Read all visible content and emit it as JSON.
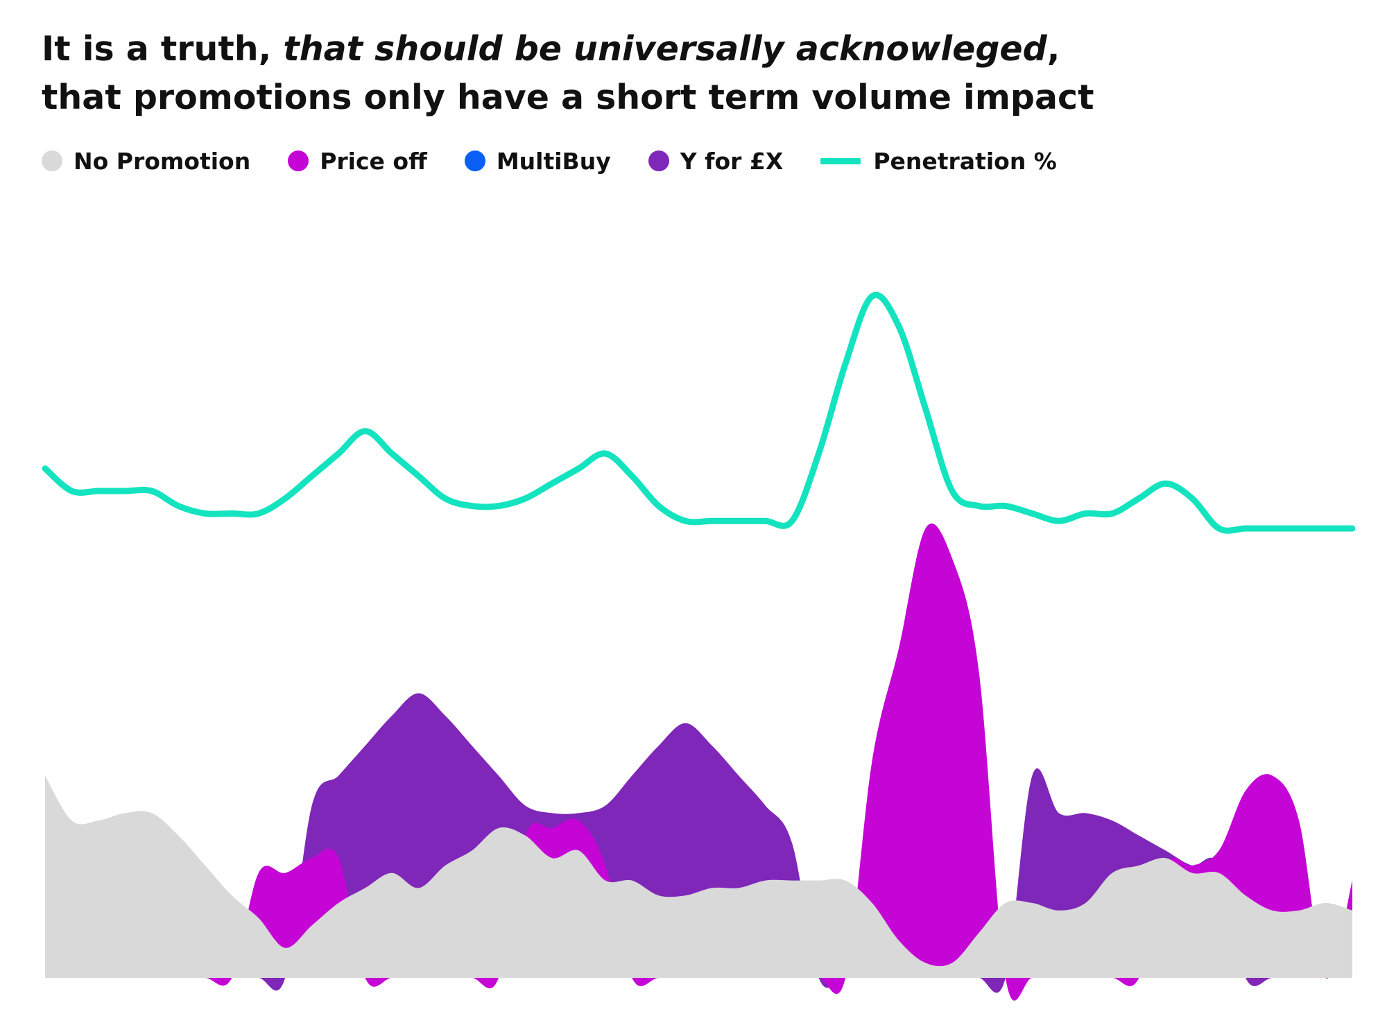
{
  "title": {
    "line1_plain": "It is a truth, ",
    "line1_italic": "that should be universally acknowleged",
    "line1_end": ",",
    "line2": "that promotions only have a short term volume impact"
  },
  "chart_data": {
    "type": "area",
    "title": "It is a truth, that should be universally acknowleged, that promotions only have a short term volume impact",
    "xlabel": "",
    "ylabel": "",
    "stacked": false,
    "x_count": 50,
    "ylim": [
      0,
      100
    ],
    "grid": false,
    "legend_position": "top-left",
    "legend": [
      {
        "name": "No Promotion",
        "color": "#d9d9d9",
        "marker": "dot"
      },
      {
        "name": "Price off",
        "color": "#c505d6",
        "marker": "dot"
      },
      {
        "name": "MultiBuy",
        "color": "#0a5ff5",
        "marker": "dot"
      },
      {
        "name": "Y for £X",
        "color": "#7f27b8",
        "marker": "dot"
      },
      {
        "name": "Penetration %",
        "color": "#14e3bf",
        "marker": "line"
      }
    ],
    "series": [
      {
        "name": "Y for £X",
        "color": "#7f27b8",
        "values": [
          0,
          0,
          0,
          0,
          0,
          0,
          0,
          0,
          0,
          0,
          23,
          27,
          31,
          35,
          38,
          35,
          31,
          27,
          23,
          22,
          22,
          23,
          27,
          31,
          34,
          31,
          27,
          23,
          18,
          0,
          0,
          0,
          0,
          0,
          0,
          0,
          0,
          27,
          22,
          22,
          21,
          19,
          17,
          15,
          15,
          0,
          0,
          0,
          0,
          0
        ]
      },
      {
        "name": "Price off",
        "color": "#c505d6",
        "values": [
          0,
          0,
          0,
          0,
          0,
          0,
          0,
          0,
          14,
          14,
          16,
          16,
          0,
          0,
          0,
          0,
          0,
          0,
          19,
          20,
          21,
          15,
          0,
          0,
          0,
          0,
          0,
          0,
          0,
          0,
          0,
          29,
          44,
          60,
          56,
          41,
          0,
          0,
          0,
          0,
          0,
          0,
          15,
          15,
          17,
          25,
          27,
          21,
          0,
          13
        ]
      },
      {
        "name": "No Promotion",
        "color": "#d9d9d9",
        "values": [
          27,
          21,
          21,
          22,
          22,
          19,
          15,
          11,
          8,
          4,
          7,
          10,
          12,
          14,
          12,
          15,
          17,
          20,
          19,
          16,
          17,
          13,
          13,
          11,
          11,
          12,
          12,
          13,
          13,
          13,
          13,
          10,
          5,
          2,
          2,
          6,
          10,
          10,
          9,
          10,
          14,
          15,
          16,
          14,
          14,
          11,
          9,
          9,
          10,
          9
        ]
      },
      {
        "name": "MultiBuy",
        "color": "#0a5ff5",
        "values": [
          0,
          0,
          0,
          0,
          0,
          0,
          0,
          0,
          0,
          0,
          0,
          0,
          0,
          0,
          0,
          0,
          0,
          0,
          0,
          0,
          0,
          0,
          0,
          0,
          0,
          0,
          0,
          0,
          0,
          0,
          0,
          0,
          0,
          0,
          0,
          0,
          0,
          0,
          0,
          0,
          0,
          0,
          0,
          0,
          0,
          0,
          0,
          0,
          0,
          0
        ]
      },
      {
        "name": "Penetration %",
        "color": "#14e3bf",
        "type": "line",
        "values": [
          68,
          65,
          65,
          65,
          65,
          63,
          62,
          62,
          62,
          64,
          67,
          70,
          73,
          70,
          67,
          64,
          63,
          63,
          64,
          66,
          68,
          70,
          67,
          63,
          61,
          61,
          61,
          61,
          61,
          70,
          82,
          91,
          87,
          76,
          65,
          63,
          63,
          62,
          61,
          62,
          62,
          64,
          66,
          64,
          60,
          60,
          60,
          60,
          60,
          60
        ]
      }
    ]
  }
}
